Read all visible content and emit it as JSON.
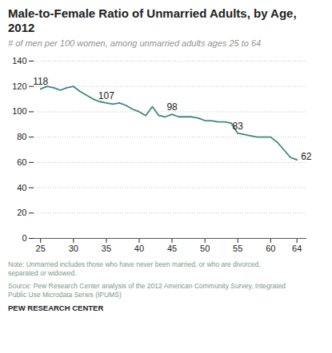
{
  "chart_data": {
    "type": "line",
    "title": "Male-to-Female Ratio of Unmarried Adults, by Age, 2012",
    "subtitle": "# of men per 100 women, among unmarried adults ages 25 to 64",
    "x": [
      25,
      26,
      27,
      28,
      29,
      30,
      31,
      32,
      33,
      34,
      35,
      36,
      37,
      38,
      39,
      40,
      41,
      42,
      43,
      44,
      45,
      46,
      47,
      48,
      49,
      50,
      51,
      52,
      53,
      54,
      55,
      56,
      57,
      58,
      59,
      60,
      61,
      62,
      63,
      64
    ],
    "values": [
      118,
      120,
      119,
      117,
      119,
      120,
      116,
      113,
      110,
      108,
      107,
      106,
      107,
      105,
      102,
      100,
      97,
      104,
      97,
      96,
      98,
      96,
      96,
      96,
      95,
      93,
      93,
      92,
      92,
      91,
      83,
      82,
      81,
      80,
      80,
      80,
      76,
      70,
      64,
      62
    ],
    "color": "#3a8a78",
    "xlim": [
      24,
      65.5
    ],
    "xticks": [
      25,
      30,
      35,
      40,
      45,
      50,
      55,
      60,
      64
    ],
    "ylim": [
      0,
      140
    ],
    "yticks": [
      0,
      20,
      40,
      60,
      80,
      100,
      120,
      140
    ],
    "grid": true,
    "annotations": [
      {
        "x": 25,
        "y": 118,
        "label": "118"
      },
      {
        "x": 35,
        "y": 107,
        "label": "107"
      },
      {
        "x": 45,
        "y": 98,
        "label": "98"
      },
      {
        "x": 55,
        "y": 83,
        "label": "83"
      },
      {
        "x": 64,
        "y": 62,
        "label": "62"
      }
    ],
    "note": "Note: Unmarried includes those who have never been married, or who are divorced,\nseparated or widowed.",
    "source": "Source: Pew Research Center analysis of the 2012 American Community Survey, Integrated\nPublic Use Microdata Series (IPUMS)",
    "brand": "PEW RESEARCH CENTER"
  }
}
